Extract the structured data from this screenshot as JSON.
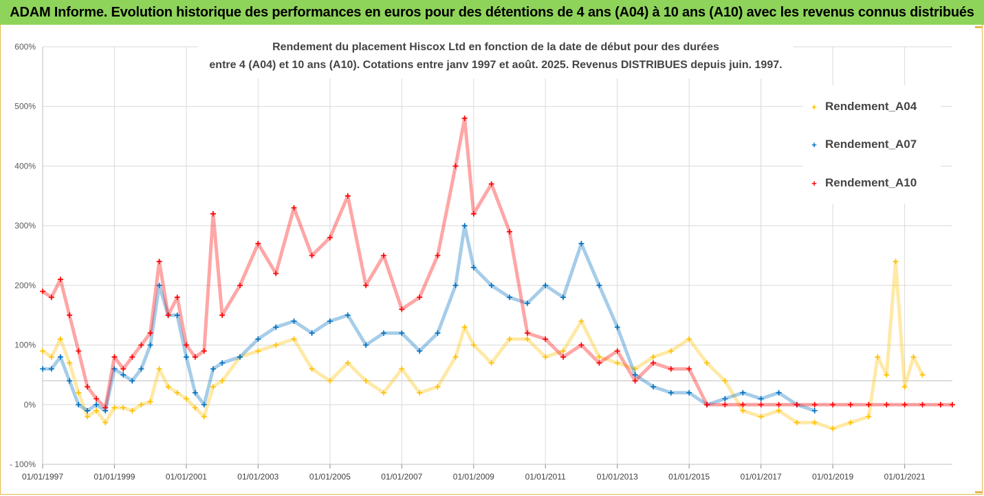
{
  "banner": {
    "text": "ADAM Informe. Evolution historique des performances en euros pour des détentions de 4 ans (A04) à 10 ans (A10) avec les revenus connus distribués"
  },
  "colors": {
    "banner_bg": "#8fd45a",
    "frame": "#e6b84a",
    "A04": "#ffc000",
    "A07": "#0070c0",
    "A10": "#ff0000",
    "grid": "#d9d9d9"
  },
  "chart_data": {
    "type": "scatter",
    "marker": "plus",
    "title_lines": [
      "Rendement du placement Hiscox Ltd en fonction de la date de début pour des durées",
      "entre 4 (A04) et 10 ans (A10). Cotations entre janv 1997 et août. 2025. Revenus DISTRIBUES depuis juin. 1997."
    ],
    "xlabel": "",
    "ylabel": "",
    "x_range": [
      "01/01/1997",
      "01/05/2022"
    ],
    "y_range_pct": [
      -100,
      600
    ],
    "y_ticks": [
      "- 100%",
      "0%",
      "100%",
      "200%",
      "300%",
      "400%",
      "500%",
      "600%"
    ],
    "x_ticks": [
      "01/01/1997",
      "01/01/1999",
      "01/01/2001",
      "01/01/2003",
      "01/01/2005",
      "01/01/2007",
      "01/01/2009",
      "01/01/2011",
      "01/01/2013",
      "01/01/2015",
      "01/01/2017",
      "01/01/2019",
      "01/01/2021"
    ],
    "grid": "vertical at x ticks, horizontal at y ticks",
    "legend_position": "right",
    "series": [
      {
        "name": "Rendement_A04",
        "color": "#ffc000",
        "points": [
          [
            "01/01/1997",
            90
          ],
          [
            "01/04/1997",
            80
          ],
          [
            "01/07/1997",
            110
          ],
          [
            "01/10/1997",
            70
          ],
          [
            "01/01/1998",
            20
          ],
          [
            "01/04/1998",
            -20
          ],
          [
            "01/07/1998",
            -10
          ],
          [
            "01/10/1998",
            -30
          ],
          [
            "01/01/1999",
            -5
          ],
          [
            "01/04/1999",
            -5
          ],
          [
            "01/07/1999",
            -10
          ],
          [
            "01/10/1999",
            0
          ],
          [
            "01/01/2000",
            5
          ],
          [
            "01/04/2000",
            60
          ],
          [
            "01/07/2000",
            30
          ],
          [
            "01/10/2000",
            20
          ],
          [
            "01/01/2001",
            10
          ],
          [
            "01/04/2001",
            -5
          ],
          [
            "01/07/2001",
            -20
          ],
          [
            "01/10/2001",
            30
          ],
          [
            "01/01/2002",
            40
          ],
          [
            "01/07/2002",
            80
          ],
          [
            "01/01/2003",
            90
          ],
          [
            "01/07/2003",
            100
          ],
          [
            "01/01/2004",
            110
          ],
          [
            "01/07/2004",
            60
          ],
          [
            "01/01/2005",
            40
          ],
          [
            "01/07/2005",
            70
          ],
          [
            "01/01/2006",
            40
          ],
          [
            "01/07/2006",
            20
          ],
          [
            "01/01/2007",
            60
          ],
          [
            "01/07/2007",
            20
          ],
          [
            "01/01/2008",
            30
          ],
          [
            "01/07/2008",
            80
          ],
          [
            "01/10/2008",
            130
          ],
          [
            "01/01/2009",
            100
          ],
          [
            "01/07/2009",
            70
          ],
          [
            "01/01/2010",
            110
          ],
          [
            "01/07/2010",
            110
          ],
          [
            "01/01/2011",
            80
          ],
          [
            "01/07/2011",
            90
          ],
          [
            "01/01/2012",
            140
          ],
          [
            "01/07/2012",
            80
          ],
          [
            "01/01/2013",
            70
          ],
          [
            "01/07/2013",
            60
          ],
          [
            "01/01/2014",
            80
          ],
          [
            "01/07/2014",
            90
          ],
          [
            "01/01/2015",
            110
          ],
          [
            "01/07/2015",
            70
          ],
          [
            "01/01/2016",
            40
          ],
          [
            "01/07/2016",
            -10
          ],
          [
            "01/01/2017",
            -20
          ],
          [
            "01/07/2017",
            -10
          ],
          [
            "01/01/2018",
            -30
          ],
          [
            "01/07/2018",
            -30
          ],
          [
            "01/01/2019",
            -40
          ],
          [
            "01/07/2019",
            -30
          ],
          [
            "01/01/2020",
            -20
          ],
          [
            "01/04/2020",
            80
          ],
          [
            "01/07/2020",
            50
          ],
          [
            "01/10/2020",
            240
          ],
          [
            "01/01/2021",
            30
          ],
          [
            "01/04/2021",
            80
          ],
          [
            "01/07/2021",
            50
          ]
        ]
      },
      {
        "name": "Rendement_A07",
        "color": "#0070c0",
        "points": [
          [
            "01/01/1997",
            60
          ],
          [
            "01/04/1997",
            60
          ],
          [
            "01/07/1997",
            80
          ],
          [
            "01/10/1997",
            40
          ],
          [
            "01/01/1998",
            0
          ],
          [
            "01/04/1998",
            -10
          ],
          [
            "01/07/1998",
            0
          ],
          [
            "01/10/1998",
            -10
          ],
          [
            "01/01/1999",
            60
          ],
          [
            "01/04/1999",
            50
          ],
          [
            "01/07/1999",
            40
          ],
          [
            "01/10/1999",
            60
          ],
          [
            "01/01/2000",
            100
          ],
          [
            "01/04/2000",
            200
          ],
          [
            "01/07/2000",
            150
          ],
          [
            "01/10/2000",
            150
          ],
          [
            "01/01/2001",
            80
          ],
          [
            "01/04/2001",
            20
          ],
          [
            "01/07/2001",
            0
          ],
          [
            "01/10/2001",
            60
          ],
          [
            "01/01/2002",
            70
          ],
          [
            "01/07/2002",
            80
          ],
          [
            "01/01/2003",
            110
          ],
          [
            "01/07/2003",
            130
          ],
          [
            "01/01/2004",
            140
          ],
          [
            "01/07/2004",
            120
          ],
          [
            "01/01/2005",
            140
          ],
          [
            "01/07/2005",
            150
          ],
          [
            "01/01/2006",
            100
          ],
          [
            "01/07/2006",
            120
          ],
          [
            "01/01/2007",
            120
          ],
          [
            "01/07/2007",
            90
          ],
          [
            "01/01/2008",
            120
          ],
          [
            "01/07/2008",
            200
          ],
          [
            "01/10/2008",
            300
          ],
          [
            "01/01/2009",
            230
          ],
          [
            "01/07/2009",
            200
          ],
          [
            "01/01/2010",
            180
          ],
          [
            "01/07/2010",
            170
          ],
          [
            "01/01/2011",
            200
          ],
          [
            "01/07/2011",
            180
          ],
          [
            "01/01/2012",
            270
          ],
          [
            "01/07/2012",
            200
          ],
          [
            "01/01/2013",
            130
          ],
          [
            "01/07/2013",
            50
          ],
          [
            "01/01/2014",
            30
          ],
          [
            "01/07/2014",
            20
          ],
          [
            "01/01/2015",
            20
          ],
          [
            "01/07/2015",
            0
          ],
          [
            "01/01/2016",
            10
          ],
          [
            "01/07/2016",
            20
          ],
          [
            "01/01/2017",
            10
          ],
          [
            "01/07/2017",
            20
          ],
          [
            "01/01/2018",
            0
          ],
          [
            "01/07/2018",
            -10
          ]
        ]
      },
      {
        "name": "Rendement_A10",
        "color": "#ff0000",
        "points": [
          [
            "01/01/1997",
            190
          ],
          [
            "01/04/1997",
            180
          ],
          [
            "01/07/1997",
            210
          ],
          [
            "01/10/1997",
            150
          ],
          [
            "01/01/1998",
            90
          ],
          [
            "01/04/1998",
            30
          ],
          [
            "01/07/1998",
            10
          ],
          [
            "01/10/1998",
            -5
          ],
          [
            "01/01/1999",
            80
          ],
          [
            "01/04/1999",
            60
          ],
          [
            "01/07/1999",
            80
          ],
          [
            "01/10/1999",
            100
          ],
          [
            "01/01/2000",
            120
          ],
          [
            "01/04/2000",
            240
          ],
          [
            "01/07/2000",
            150
          ],
          [
            "01/10/2000",
            180
          ],
          [
            "01/01/2001",
            100
          ],
          [
            "01/04/2001",
            80
          ],
          [
            "01/07/2001",
            90
          ],
          [
            "01/10/2001",
            320
          ],
          [
            "01/01/2002",
            150
          ],
          [
            "01/07/2002",
            200
          ],
          [
            "01/01/2003",
            270
          ],
          [
            "01/07/2003",
            220
          ],
          [
            "01/01/2004",
            330
          ],
          [
            "01/07/2004",
            250
          ],
          [
            "01/01/2005",
            280
          ],
          [
            "01/07/2005",
            350
          ],
          [
            "01/01/2006",
            200
          ],
          [
            "01/07/2006",
            250
          ],
          [
            "01/01/2007",
            160
          ],
          [
            "01/07/2007",
            180
          ],
          [
            "01/01/2008",
            250
          ],
          [
            "01/07/2008",
            400
          ],
          [
            "01/10/2008",
            480
          ],
          [
            "01/01/2009",
            320
          ],
          [
            "01/07/2009",
            370
          ],
          [
            "01/01/2010",
            290
          ],
          [
            "01/07/2010",
            120
          ],
          [
            "01/01/2011",
            110
          ],
          [
            "01/07/2011",
            80
          ],
          [
            "01/01/2012",
            100
          ],
          [
            "01/07/2012",
            70
          ],
          [
            "01/01/2013",
            90
          ],
          [
            "01/07/2013",
            40
          ],
          [
            "01/01/2014",
            70
          ],
          [
            "01/07/2014",
            60
          ],
          [
            "01/01/2015",
            60
          ],
          [
            "01/07/2015",
            0
          ],
          [
            "01/01/2016",
            0
          ],
          [
            "01/07/2016",
            0
          ],
          [
            "01/01/2017",
            0
          ],
          [
            "01/07/2017",
            0
          ],
          [
            "01/01/2018",
            0
          ],
          [
            "01/07/2018",
            0
          ],
          [
            "01/01/2019",
            0
          ],
          [
            "01/07/2019",
            0
          ],
          [
            "01/01/2020",
            0
          ],
          [
            "01/07/2020",
            0
          ],
          [
            "01/01/2021",
            0
          ],
          [
            "01/07/2021",
            0
          ],
          [
            "01/01/2022",
            0
          ],
          [
            "01/05/2022",
            0
          ]
        ]
      }
    ]
  }
}
